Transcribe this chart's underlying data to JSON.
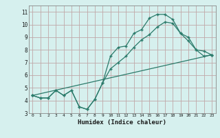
{
  "title": "",
  "xlabel": "Humidex (Indice chaleur)",
  "ylabel": "",
  "bg_color": "#d6f0ee",
  "grid_color": "#c0a8a8",
  "line_color": "#2a7a6a",
  "xlim": [
    -0.5,
    23.5
  ],
  "ylim": [
    3,
    11.5
  ],
  "xticks": [
    0,
    1,
    2,
    3,
    4,
    5,
    6,
    7,
    8,
    9,
    10,
    11,
    12,
    13,
    14,
    15,
    16,
    17,
    18,
    19,
    20,
    21,
    22,
    23
  ],
  "yticks": [
    3,
    4,
    5,
    6,
    7,
    8,
    9,
    10,
    11
  ],
  "line1_x": [
    0,
    1,
    2,
    3,
    4,
    5,
    6,
    7,
    8,
    9,
    10,
    11,
    12,
    13,
    14,
    15,
    16,
    17,
    18,
    19,
    20,
    21,
    22,
    23
  ],
  "line1_y": [
    4.4,
    4.2,
    4.2,
    4.8,
    4.4,
    4.8,
    3.5,
    3.3,
    4.1,
    5.4,
    7.5,
    8.2,
    8.3,
    9.3,
    9.6,
    10.5,
    10.8,
    10.8,
    10.4,
    9.3,
    9.0,
    8.0,
    7.5,
    7.6
  ],
  "line2_x": [
    0,
    1,
    2,
    3,
    4,
    5,
    6,
    7,
    8,
    9,
    10,
    11,
    12,
    13,
    14,
    15,
    16,
    17,
    18,
    19,
    20,
    21,
    22,
    23
  ],
  "line2_y": [
    4.4,
    4.2,
    4.2,
    4.8,
    4.4,
    4.8,
    3.5,
    3.3,
    4.1,
    5.4,
    6.5,
    7.0,
    7.5,
    8.2,
    8.8,
    9.2,
    9.8,
    10.2,
    10.1,
    9.3,
    8.7,
    8.0,
    7.9,
    7.6
  ],
  "line3_x": [
    0,
    23
  ],
  "line3_y": [
    4.4,
    7.6
  ]
}
